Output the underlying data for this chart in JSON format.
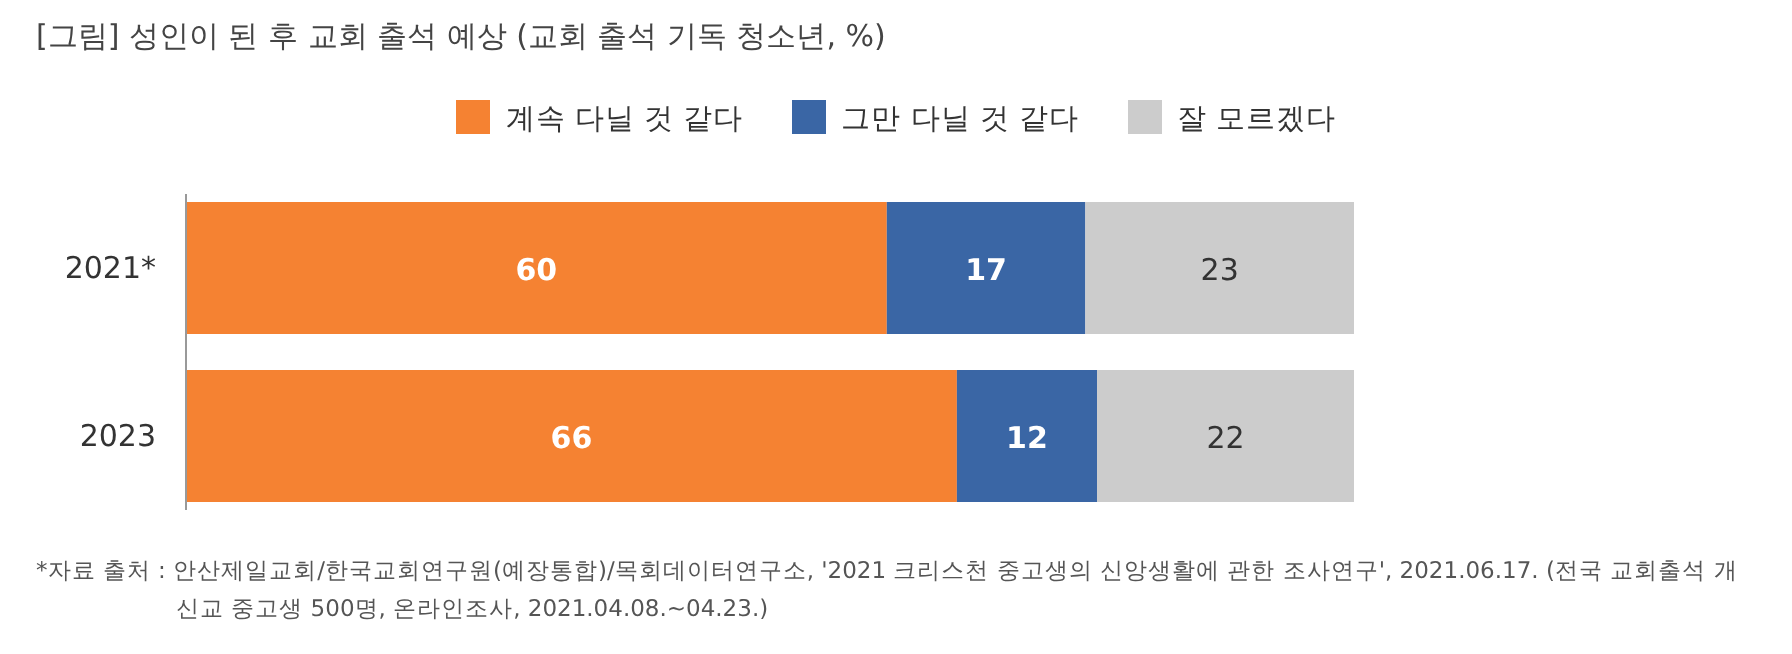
{
  "chart_data": {
    "type": "bar",
    "orientation": "horizontal",
    "stacked": true,
    "title": "[그림] 성인이 된 후 교회 출석 예상 (교회 출석 기독 청소년, %)",
    "categories": [
      "2021*",
      "2023"
    ],
    "series": [
      {
        "name": "계속 다닐 것 같다",
        "color": "#f58232",
        "values": [
          60,
          66
        ]
      },
      {
        "name": "그만 다닐 것 같다",
        "color": "#3a66a5",
        "values": [
          17,
          12
        ]
      },
      {
        "name": "잘 모르겠다",
        "color": "#cccccc",
        "values": [
          23,
          22
        ]
      }
    ],
    "xlim": [
      0,
      100
    ],
    "tick_labels": "y",
    "data_labels": true,
    "legend": "top",
    "annotations": [
      "*자료 출처 : 안산제일교회/한국교회연구원(예장통합)/목회데이터연구소, '2021 크리스천 중고생의 신앙생활에 관한 조사연구', 2021.06.17. (전국 교회출석 개신교 중고생 500명, 온라인조사, 2021.04.08.~04.23.)"
    ]
  }
}
